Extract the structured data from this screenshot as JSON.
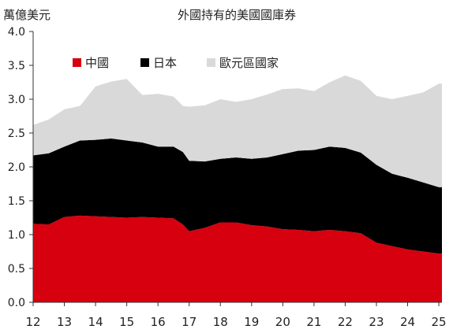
{
  "chart_data": {
    "type": "area",
    "stacked": true,
    "title": "外國持有的美國國庫券",
    "ylabel": "萬億美元",
    "xlabel": "",
    "ylim": [
      0,
      4.0
    ],
    "yticks": [
      "0.0",
      "0.5",
      "1.0",
      "1.5",
      "2.0",
      "2.5",
      "3.0",
      "3.5",
      "4.0"
    ],
    "xlim": [
      2012.0,
      2025.1
    ],
    "xticks": [
      {
        "value": 2012,
        "label": "12"
      },
      {
        "value": 2013,
        "label": "13"
      },
      {
        "value": 2014,
        "label": "14"
      },
      {
        "value": 2015,
        "label": "15"
      },
      {
        "value": 2016,
        "label": "16"
      },
      {
        "value": 2017,
        "label": "17"
      },
      {
        "value": 2018,
        "label": "18"
      },
      {
        "value": 2019,
        "label": "19"
      },
      {
        "value": 2020,
        "label": "20"
      },
      {
        "value": 2021,
        "label": "21"
      },
      {
        "value": 2022,
        "label": "22"
      },
      {
        "value": 2023,
        "label": "23"
      },
      {
        "value": 2024,
        "label": "24"
      },
      {
        "value": 2025,
        "label": "25"
      }
    ],
    "legend_position": "top-left",
    "x": [
      2012.0,
      2012.5,
      2013.0,
      2013.5,
      2014.0,
      2014.5,
      2015.0,
      2015.5,
      2016.0,
      2016.5,
      2016.8,
      2017.0,
      2017.5,
      2018.0,
      2018.5,
      2019.0,
      2019.5,
      2020.0,
      2020.5,
      2021.0,
      2021.5,
      2022.0,
      2022.5,
      2023.0,
      2023.5,
      2024.0,
      2024.5,
      2025.0,
      2025.1
    ],
    "series": [
      {
        "name": "中國",
        "color": "#d7000f",
        "values": [
          1.16,
          1.15,
          1.26,
          1.28,
          1.27,
          1.26,
          1.25,
          1.26,
          1.25,
          1.24,
          1.15,
          1.05,
          1.1,
          1.18,
          1.18,
          1.14,
          1.12,
          1.08,
          1.07,
          1.05,
          1.07,
          1.05,
          1.02,
          0.88,
          0.83,
          0.78,
          0.75,
          0.72,
          0.72
        ]
      },
      {
        "name": "日本",
        "color": "#000000",
        "values": [
          1.01,
          1.05,
          1.04,
          1.11,
          1.13,
          1.16,
          1.14,
          1.1,
          1.05,
          1.06,
          1.07,
          1.04,
          0.98,
          0.94,
          0.96,
          0.98,
          1.02,
          1.11,
          1.17,
          1.2,
          1.23,
          1.23,
          1.19,
          1.15,
          1.07,
          1.06,
          1.02,
          0.98,
          0.98
        ]
      },
      {
        "name": "歐元區國家",
        "color": "#d9d9d9",
        "values": [
          0.45,
          0.5,
          0.55,
          0.51,
          0.79,
          0.84,
          0.91,
          0.7,
          0.78,
          0.74,
          0.68,
          0.8,
          0.83,
          0.88,
          0.82,
          0.88,
          0.93,
          0.96,
          0.92,
          0.87,
          0.95,
          1.07,
          1.06,
          1.02,
          1.1,
          1.21,
          1.33,
          1.53,
          1.53
        ]
      }
    ]
  }
}
